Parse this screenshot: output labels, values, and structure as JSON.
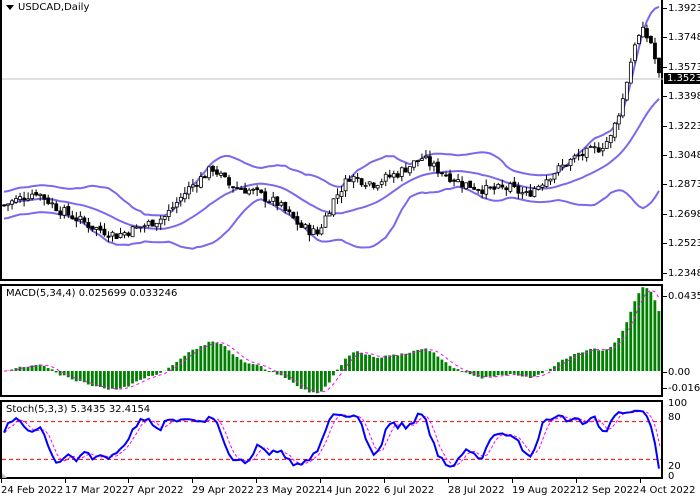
{
  "window": {
    "symbol_title": "USDCAD,Daily",
    "current_price": "1.35232"
  },
  "main_panel": {
    "price_axis": [
      "1.39230",
      "1.37480",
      "1.35730",
      "1.33980",
      "1.32230",
      "1.30480",
      "1.28730",
      "1.26980",
      "1.25230",
      "1.23480"
    ],
    "indicator": "Bollinger Bands",
    "band_color": "#7B68EE",
    "current_price_line_color": "#C0C0C0"
  },
  "macd_panel": {
    "label": "MACD(5,34,4) 0.025699 0.033246",
    "axis": [
      "0.043566",
      "0.00",
      "-0.016673"
    ],
    "histogram_color": "#008000",
    "signal_color": "#FF00FF"
  },
  "stoch_panel": {
    "label": "Stoch(5,3,3) 5.3435 32.4154",
    "axis": [
      "100",
      "80",
      "20",
      "0"
    ],
    "main_color": "#0000FF",
    "signal_color": "#FF00FF",
    "level_color": "#FF0000"
  },
  "time_axis": [
    "24 Feb 2022",
    "17 Mar 2022",
    "7 Apr 2022",
    "29 Apr 2022",
    "23 May 2022",
    "14 Jun 2022",
    "6 Jul 2022",
    "28 Jul 2022",
    "19 Aug 2022",
    "12 Sep 2022",
    "4 Oct 2022"
  ],
  "chart_data": [
    {
      "type": "candlestick",
      "title": "USDCAD,Daily",
      "indicators": [
        "Bollinger Bands"
      ],
      "x_ticks": [
        "24 Feb 2022",
        "17 Mar 2022",
        "7 Apr 2022",
        "29 Apr 2022",
        "23 May 2022",
        "14 Jun 2022",
        "6 Jul 2022",
        "28 Jul 2022",
        "19 Aug 2022",
        "12 Sep 2022",
        "4 Oct 2022"
      ],
      "ylim": [
        1.2348,
        1.3923
      ],
      "y_ticks": [
        1.3923,
        1.3748,
        1.3573,
        1.3398,
        1.3223,
        1.3048,
        1.2873,
        1.2698,
        1.2523,
        1.2348
      ],
      "last_price": 1.35232,
      "approx_close_series": [
        {
          "date": "24 Feb 2022",
          "close": 1.275
        },
        {
          "date": "17 Mar 2022",
          "close": 1.261
        },
        {
          "date": "7 Apr 2022",
          "close": 1.262
        },
        {
          "date": "29 Apr 2022",
          "close": 1.283
        },
        {
          "date": "23 May 2022",
          "close": 1.266
        },
        {
          "date": "14 Jun 2022",
          "close": 1.294
        },
        {
          "date": "6 Jul 2022",
          "close": 1.298
        },
        {
          "date": "28 Jul 2022",
          "close": 1.282
        },
        {
          "date": "19 Aug 2022",
          "close": 1.302
        },
        {
          "date": "12 Sep 2022",
          "close": 1.309
        },
        {
          "date": "4 Oct 2022",
          "close": 1.3523
        }
      ],
      "approx_peak": {
        "date": "late Sep 2022",
        "high": 1.381
      }
    },
    {
      "type": "bar",
      "title": "MACD(5,34,4)",
      "values_current": {
        "macd": 0.025699,
        "signal": 0.033246
      },
      "ylim": [
        -0.016673,
        0.043566
      ],
      "y_ticks": [
        0.043566,
        0.0,
        -0.016673
      ],
      "series": [
        {
          "name": "MACD histogram",
          "color": "#008000"
        },
        {
          "name": "Signal",
          "color": "#FF00FF",
          "style": "dotted"
        }
      ]
    },
    {
      "type": "line",
      "title": "Stoch(5,3,3)",
      "values_current": {
        "main": 5.3435,
        "signal": 32.4154
      },
      "ylim": [
        0,
        100
      ],
      "y_ticks": [
        100,
        80,
        20,
        0
      ],
      "levels": [
        80,
        20
      ],
      "series": [
        {
          "name": "%K",
          "color": "#0000FF"
        },
        {
          "name": "%D",
          "color": "#FF00FF",
          "style": "dotted"
        }
      ]
    }
  ]
}
